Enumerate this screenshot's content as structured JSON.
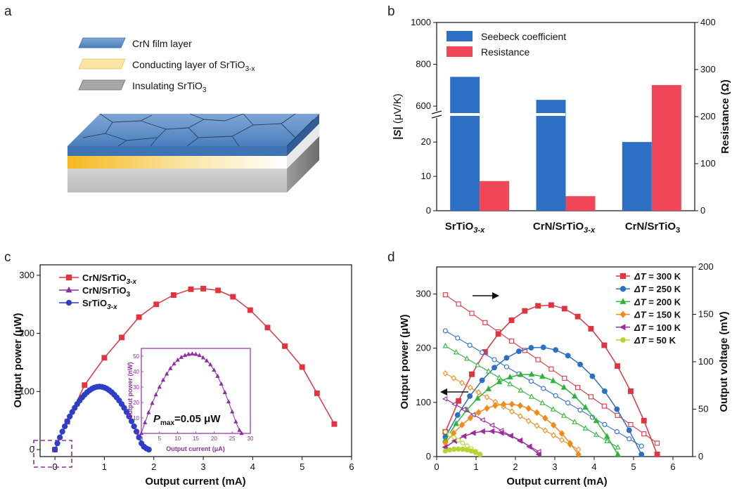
{
  "panels": {
    "a": "a",
    "b": "b",
    "c": "c",
    "d": "d"
  },
  "panel_a": {
    "legend": [
      {
        "pre": "CrN film layer",
        "sub": "",
        "post": ""
      },
      {
        "pre": "Conducting layer of SrTiO",
        "sub": "3-x",
        "post": ""
      },
      {
        "pre": "Insulating SrTiO",
        "sub": "3",
        "post": ""
      }
    ],
    "colors": {
      "crn": "#4f86c6",
      "conducting": "#f6c44a",
      "insulating": "#9a9a9a"
    }
  },
  "chart_data": [
    {
      "id": "b",
      "type": "bar",
      "categories": [
        {
          "pre": "SrTiO",
          "sub": "3-x"
        },
        {
          "pre": "CrN/SrTiO",
          "sub": "3-x"
        },
        {
          "pre": "CrN/SrTiO",
          "sub": "3"
        }
      ],
      "series": [
        {
          "name": "Seebeck coefficient",
          "axis": "left",
          "values": [
            740,
            630,
            20
          ],
          "color": "#2e6fc6"
        },
        {
          "name": "Resistance",
          "axis": "right",
          "values": [
            63,
            31,
            267
          ],
          "color": "#f04758"
        }
      ],
      "ylabel_left": "|S| (μV/K)",
      "ylabel_left_parts": {
        "bar1": "|",
        "s": "S",
        "bar2": "|",
        "unit": " (μV/K)"
      },
      "ylabel_right": "Resistance (Ω)",
      "left_axis_lower": {
        "range": [
          0,
          28
        ],
        "ticks": [
          0,
          10,
          20
        ]
      },
      "left_axis_upper": {
        "range": [
          560,
          1000
        ],
        "ticks": [
          600,
          800,
          1000
        ]
      },
      "right_axis": {
        "range": [
          0,
          400
        ],
        "ticks": [
          0,
          100,
          200,
          300,
          400
        ]
      }
    },
    {
      "id": "c",
      "type": "line",
      "xlabel": "Output current (mA)",
      "ylabel": "Output power (μW)",
      "xlim": [
        -0.3,
        6
      ],
      "ylim": [
        -12,
        318
      ],
      "xticks": [
        0,
        1,
        2,
        3,
        4,
        5,
        6
      ],
      "yticks": [
        0,
        100,
        200,
        300
      ],
      "series": [
        {
          "name": "CrN/SrTiO3-x",
          "label": {
            "pre": "CrN/SrTiO",
            "sub": "3-x"
          },
          "color": "#e03441",
          "marker": "square",
          "x": [
            0,
            0.25,
            0.6,
            1.0,
            1.35,
            1.7,
            2.05,
            2.4,
            2.75,
            3.0,
            3.3,
            3.6,
            3.95,
            4.3,
            4.65,
            5.0,
            5.3,
            5.65
          ],
          "y": [
            0,
            48,
            111,
            158,
            193,
            228,
            250,
            266,
            276,
            277,
            274,
            263,
            240,
            210,
            178,
            142,
            97,
            44
          ]
        },
        {
          "name": "CrN/SrTiO3",
          "label": {
            "pre": "CrN/SrTiO",
            "sub": "3"
          },
          "color": "#8d2fa3",
          "marker": "triangle",
          "x": [],
          "y": []
        },
        {
          "name": "SrTiO3-x",
          "label": {
            "pre": "SrTiO",
            "sub": "3-x"
          },
          "color": "#2d3fc8",
          "marker": "circle",
          "x": [
            0,
            0.05,
            0.1,
            0.15,
            0.2,
            0.25,
            0.3,
            0.35,
            0.4,
            0.45,
            0.5,
            0.55,
            0.6,
            0.65,
            0.7,
            0.75,
            0.8,
            0.85,
            0.9,
            0.95,
            1.0,
            1.05,
            1.1,
            1.15,
            1.2,
            1.25,
            1.3,
            1.35,
            1.4,
            1.45,
            1.5,
            1.55,
            1.6,
            1.65,
            1.7,
            1.75,
            1.8,
            1.85,
            1.9
          ],
          "y": [
            0,
            10.8,
            21,
            31,
            40,
            48.8,
            57,
            64.7,
            71.8,
            78.4,
            84.3,
            89.7,
            94.4,
            98.6,
            102,
            104.8,
            106.8,
            108,
            108.4,
            108,
            106.8,
            104.8,
            102,
            98.6,
            94.4,
            89.7,
            84.3,
            78.4,
            71.8,
            64.7,
            57,
            48.8,
            40,
            31,
            21,
            10.8,
            5,
            2,
            0
          ]
        }
      ],
      "inset": {
        "xlabel": "Output current (μA)",
        "ylabel": "Output power (nW)",
        "xlim": [
          0,
          30
        ],
        "ylim": [
          0,
          55
        ],
        "xticks": [
          0,
          5,
          10,
          15,
          20,
          25,
          30
        ],
        "yticks": [
          0,
          10,
          20,
          30,
          40,
          50
        ],
        "annotation": {
          "p": "P",
          "sub": "max",
          "rest": "=0.05 μW"
        },
        "series": {
          "name": "CrN/SrTiO3",
          "color": "#8d2fa3",
          "x": [
            0,
            1,
            2,
            3,
            4,
            5,
            6,
            7,
            8,
            9,
            10,
            11,
            12,
            13,
            14,
            15,
            16,
            17,
            18,
            19,
            20,
            21,
            22,
            23,
            24,
            25,
            26,
            27,
            27.6
          ],
          "y": [
            0,
            7,
            13.5,
            19.5,
            25,
            30,
            34.5,
            38.5,
            42,
            45,
            47.5,
            49.3,
            50.5,
            51.2,
            51.5,
            51.2,
            50.5,
            49,
            47,
            44.5,
            41,
            37,
            32,
            26.5,
            20.5,
            14,
            7.5,
            2,
            0
          ]
        }
      }
    },
    {
      "id": "d",
      "type": "line",
      "xlabel": "Output current (mA)",
      "ylabel": "Output power (μW)",
      "ylabel_right": "Output voltage (mV)",
      "xlim": [
        0,
        6.5
      ],
      "ylim": [
        0,
        350
      ],
      "ylim_right": [
        0,
        200
      ],
      "xticks": [
        0,
        1,
        2,
        3,
        4,
        5,
        6
      ],
      "yticks": [
        0,
        100,
        200,
        300
      ],
      "yticks_right": [
        0,
        50,
        100,
        150,
        200
      ],
      "series": [
        {
          "name": "ΔT = 300 K",
          "legend": {
            "d": "Δ",
            "t": "T",
            "rest": " = 300 K"
          },
          "color": "#e03441",
          "marker": "square",
          "imax": 5.6,
          "pmax": 276,
          "vmax": 177,
          "n": 17
        },
        {
          "name": "ΔT = 250 K",
          "legend": {
            "d": "Δ",
            "t": "T",
            "rest": " = 250 K"
          },
          "color": "#2e6fc6",
          "marker": "circle",
          "imax": 5.2,
          "pmax": 198,
          "vmax": 138,
          "n": 17
        },
        {
          "name": "ΔT = 200 K",
          "legend": {
            "d": "Δ",
            "t": "T",
            "rest": " = 200 K"
          },
          "color": "#2fb33c",
          "marker": "triangle",
          "imax": 4.6,
          "pmax": 148,
          "vmax": 122,
          "n": 17
        },
        {
          "name": "ΔT = 150 K",
          "legend": {
            "d": "Δ",
            "t": "T",
            "rest": " = 150 K"
          },
          "color": "#f28a1a",
          "marker": "diamond",
          "imax": 3.6,
          "pmax": 93,
          "vmax": 93,
          "n": 17
        },
        {
          "name": "ΔT = 100 K",
          "legend": {
            "d": "Δ",
            "t": "T",
            "rest": " = 100 K"
          },
          "color": "#9b2d9e",
          "marker": "lefttri",
          "imax": 2.6,
          "pmax": 43,
          "vmax": 66,
          "n": 11
        },
        {
          "name": "ΔT = 50 K",
          "legend": {
            "d": "Δ",
            "t": "T",
            "rest": " = 50 K"
          },
          "color": "#b8d433",
          "marker": "hexagon",
          "imax": 1.1,
          "pmax": 10,
          "vmax": 32,
          "n": 9
        }
      ]
    }
  ]
}
